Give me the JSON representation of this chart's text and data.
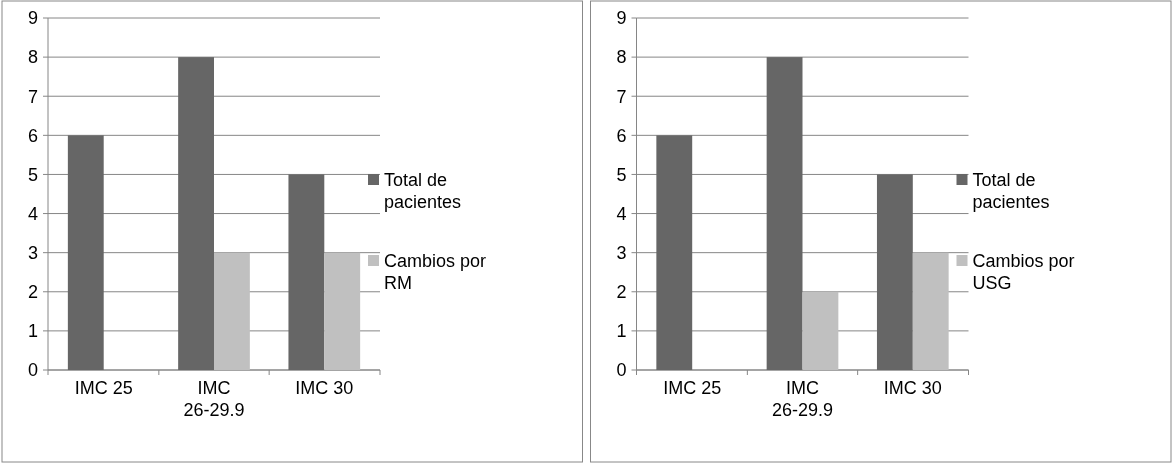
{
  "chart_data": [
    {
      "type": "bar",
      "categories": [
        "IMC 25",
        "IMC 26-29.9",
        "IMC 30"
      ],
      "series": [
        {
          "name": "Total de pacientes",
          "color": "#666666",
          "values": [
            6,
            8,
            5
          ]
        },
        {
          "name": "Cambios por RM",
          "color": "#c0c0c0",
          "values": [
            0,
            3,
            3
          ]
        }
      ],
      "ylim": [
        0,
        9
      ],
      "yticks": [
        0,
        1,
        2,
        3,
        4,
        5,
        6,
        7,
        8,
        9
      ],
      "grid": "y",
      "legend": "right"
    },
    {
      "type": "bar",
      "categories": [
        "IMC 25",
        "IMC 26-29.9",
        "IMC 30"
      ],
      "series": [
        {
          "name": "Total de pacientes",
          "color": "#666666",
          "values": [
            6,
            8,
            5
          ]
        },
        {
          "name": "Cambios por USG",
          "color": "#c0c0c0",
          "values": [
            0,
            2,
            3
          ]
        }
      ],
      "ylim": [
        0,
        9
      ],
      "yticks": [
        0,
        1,
        2,
        3,
        4,
        5,
        6,
        7,
        8,
        9
      ],
      "grid": "y",
      "legend": "right"
    }
  ]
}
